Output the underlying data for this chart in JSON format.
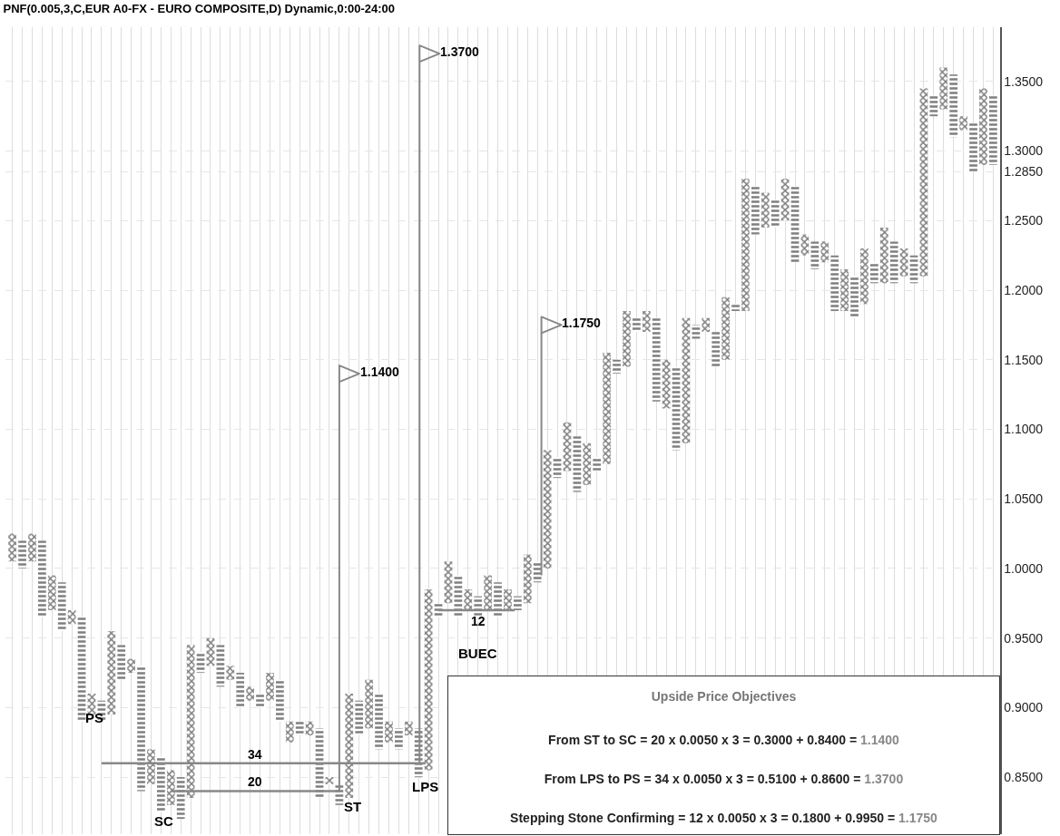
{
  "chart_data": {
    "type": "bar",
    "title": "PNF(0.005,3,C,EUR A0-FX - EURO COMPOSITE,D) Dynamic,0:00-24:00",
    "categories": [
      null,
      null,
      null,
      null,
      null,
      null,
      null,
      null,
      null,
      null,
      null,
      null,
      null,
      null,
      null,
      null,
      null,
      null,
      null,
      null,
      null,
      null,
      null,
      null,
      null,
      null,
      null,
      null,
      null,
      null,
      null,
      null,
      null,
      null,
      null,
      null,
      null,
      null,
      null,
      null,
      null,
      null,
      null,
      null,
      null,
      null,
      null,
      null,
      null,
      null,
      null,
      null,
      null,
      null,
      null,
      null,
      null,
      null,
      null,
      null,
      null,
      null,
      null,
      null,
      null,
      null,
      null,
      null,
      null,
      null,
      null,
      null,
      null,
      null,
      null,
      null,
      null,
      null,
      null,
      null,
      null,
      null,
      null,
      null,
      null,
      null,
      null,
      null,
      null,
      null,
      null,
      null,
      null,
      null,
      null,
      null,
      null,
      null,
      null,
      null
    ],
    "base": [
      1.005,
      1.02,
      1.005,
      1.02,
      0.97,
      0.99,
      0.96,
      0.965,
      0.895,
      0.905,
      0.895,
      0.945,
      0.925,
      0.93,
      0.845,
      0.865,
      0.83,
      0.85,
      0.835,
      0.94,
      0.93,
      0.945,
      0.92,
      0.925,
      0.905,
      0.91,
      0.905,
      0.92,
      0.875,
      0.89,
      0.88,
      0.885,
      0.845,
      0.845,
      0.835,
      0.905,
      0.885,
      0.91,
      0.875,
      0.885,
      0.88,
      0.885,
      0.855,
      0.975,
      0.975,
      0.995,
      0.97,
      0.98,
      0.97,
      0.99,
      0.97,
      0.98,
      0.975,
      1.005,
      1.0,
      1.08,
      1.07,
      1.095,
      1.06,
      1.08,
      1.075,
      1.15,
      1.145,
      1.18,
      1.17,
      1.18,
      1.115,
      1.145,
      1.09,
      1.175,
      1.17,
      1.17,
      1.15,
      1.19,
      1.185,
      1.275,
      1.245,
      1.265,
      1.25,
      1.275,
      1.225,
      1.235,
      1.22,
      1.225,
      1.185,
      1.21,
      1.19,
      1.22,
      1.205,
      1.235,
      1.21,
      1.225,
      1.21,
      1.34,
      1.33,
      1.355,
      1.315,
      1.32,
      1.29,
      1.34
    ],
    "values": [
      0.02,
      -0.02,
      0.02,
      -0.055,
      0.025,
      -0.035,
      0.01,
      -0.075,
      0.015,
      -0.015,
      0.06,
      -0.025,
      0.01,
      -0.09,
      0.025,
      -0.04,
      0.025,
      -0.03,
      0.11,
      -0.015,
      0.02,
      -0.03,
      0.01,
      -0.025,
      0.01,
      -0.01,
      0.02,
      -0.03,
      0.015,
      -0.01,
      0.01,
      -0.05,
      0.005,
      -0.015,
      0.075,
      -0.025,
      0.035,
      -0.04,
      0.015,
      -0.015,
      0.01,
      -0.035,
      0.13,
      -0.01,
      0.03,
      -0.03,
      0.015,
      -0.015,
      0.025,
      -0.025,
      0.015,
      -0.01,
      0.035,
      -0.015,
      0.085,
      -0.015,
      0.035,
      -0.04,
      0.03,
      -0.01,
      0.08,
      -0.01,
      0.04,
      -0.01,
      0.015,
      -0.06,
      0.035,
      -0.06,
      0.09,
      -0.01,
      0.01,
      -0.025,
      0.045,
      -0.005,
      0.095,
      -0.035,
      0.025,
      -0.02,
      0.03,
      -0.055,
      0.015,
      -0.02,
      0.015,
      -0.04,
      0.03,
      -0.03,
      0.04,
      -0.015,
      0.04,
      -0.03,
      0.02,
      -0.02,
      0.135,
      -0.015,
      0.03,
      -0.045,
      0.01,
      -0.035,
      0.055,
      -0.05
    ],
    "color": "#000000",
    "ylim": [
      0.809,
      1.389
    ],
    "yticks": [
      {
        "value": 0.85,
        "label": "0.8500"
      },
      {
        "value": 0.9,
        "label": "0.9000"
      },
      {
        "value": 0.95,
        "label": "0.9500"
      },
      {
        "value": 1.0,
        "label": "1.0000"
      },
      {
        "value": 1.05,
        "label": "1.0500"
      },
      {
        "value": 1.1,
        "label": "1.1000"
      },
      {
        "value": 1.15,
        "label": "1.1500"
      },
      {
        "value": 1.2,
        "label": "1.2000"
      },
      {
        "value": 1.25,
        "label": "1.2500"
      },
      {
        "value": 1.285,
        "label": "1.2850"
      },
      {
        "value": 1.3,
        "label": "1.3000"
      },
      {
        "value": 1.35,
        "label": "1.3500"
      }
    ],
    "grid": true,
    "legend": false,
    "tick_labels": "y",
    "annotations": [
      "1.1400",
      "1.3700",
      "1.1750",
      "34",
      "20",
      "12",
      "PS",
      "SC",
      "ST",
      "LPS",
      "BUEC",
      "Upside Price Objectives",
      "From ST to SC = 20 x 0.0050 x 3 = 0.3000 + 0.8400 = 1.1400",
      "From LPS to PS = 34 x 0.0050 x 3 = 0.5100  + 0.8600 = 1.3700",
      "Stepping Stone Confirming = 12 x 0.0050 x 3 = 0.1800 + 0.9950 = 1.1750"
    ]
  }
}
